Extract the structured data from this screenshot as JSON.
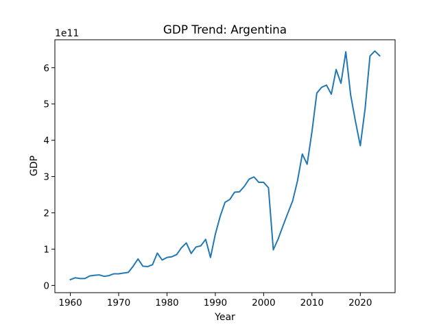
{
  "chart_data": {
    "type": "line",
    "title": "GDP Trend: Argentina",
    "xlabel": "Year",
    "ylabel": "GDP",
    "y_offset_label": "1e11",
    "xlim": [
      1956.8,
      2027.2
    ],
    "ylim": [
      -0.2,
      6.77
    ],
    "y_unit_multiplier": 100000000000,
    "x_ticks": [
      1960,
      1970,
      1980,
      1990,
      2000,
      2010,
      2020
    ],
    "y_ticks": [
      0,
      1,
      2,
      3,
      4,
      5,
      6
    ],
    "grid": false,
    "legend": "none",
    "line_color": "#1f77b4",
    "series": [
      {
        "x": [
          1960,
          1961,
          1962,
          1963,
          1964,
          1965,
          1966,
          1967,
          1968,
          1969,
          1970,
          1971,
          1972,
          1973,
          1974,
          1975,
          1976,
          1977,
          1978,
          1979,
          1980,
          1981,
          1982,
          1983,
          1984,
          1985,
          1986,
          1987,
          1988,
          1989,
          1990,
          1991,
          1992,
          1993,
          1994,
          1995,
          1996,
          1997,
          1998,
          1999,
          2000,
          2001,
          2002,
          2003,
          2004,
          2005,
          2006,
          2007,
          2008,
          2009,
          2010,
          2011,
          2012,
          2013,
          2014,
          2015,
          2016,
          2017,
          2018,
          2019,
          2020,
          2021,
          2022,
          2023,
          2024
        ],
        "values": [
          0.16,
          0.21,
          0.19,
          0.19,
          0.26,
          0.28,
          0.29,
          0.25,
          0.27,
          0.32,
          0.32,
          0.34,
          0.36,
          0.53,
          0.73,
          0.53,
          0.52,
          0.57,
          0.89,
          0.7,
          0.77,
          0.79,
          0.85,
          1.04,
          1.17,
          0.88,
          1.06,
          1.09,
          1.27,
          0.77,
          1.41,
          1.9,
          2.29,
          2.37,
          2.57,
          2.58,
          2.73,
          2.93,
          2.99,
          2.84,
          2.84,
          2.69,
          0.98,
          1.28,
          1.64,
          1.99,
          2.33,
          2.88,
          3.62,
          3.34,
          4.24,
          5.3,
          5.46,
          5.52,
          5.27,
          5.95,
          5.57,
          6.44,
          5.25,
          4.52,
          3.85,
          4.88,
          6.32,
          6.46,
          6.33
        ]
      }
    ]
  }
}
